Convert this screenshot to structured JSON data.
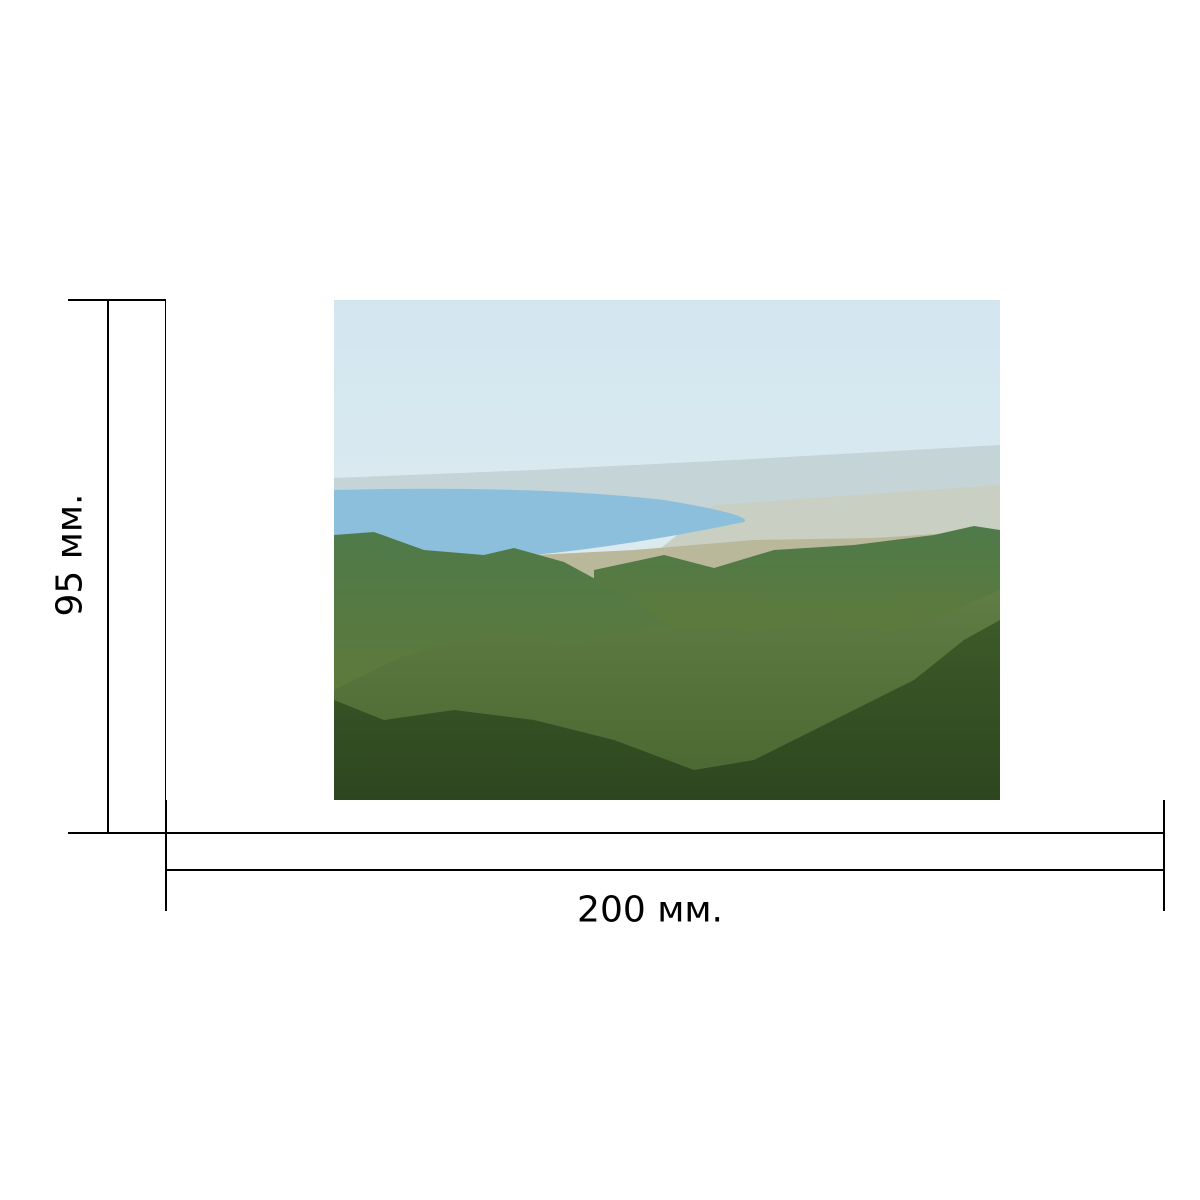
{
  "dimensions": {
    "height_label": "95 мм.",
    "width_label": "200 мм."
  },
  "photo": {
    "subject": "mountain-landscape",
    "colors": {
      "sky": "#dcebf0",
      "sea": "#8cbfdc",
      "forest": "#3f6a3a"
    }
  }
}
